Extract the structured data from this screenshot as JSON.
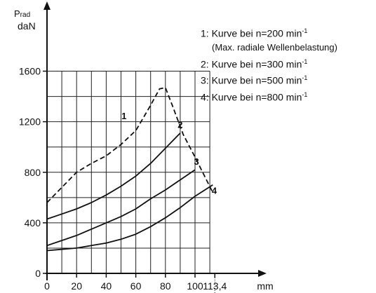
{
  "chart_data": {
    "type": "line",
    "ylabel_main": "P",
    "ylabel_sub": "rad",
    "yunit": "daN",
    "xunit": "mm",
    "xlim": [
      0,
      113.4
    ],
    "ylim": [
      0,
      1750
    ],
    "x_ticks": [
      {
        "v": 0,
        "label": "0"
      },
      {
        "v": 20,
        "label": "20"
      },
      {
        "v": 40,
        "label": "40"
      },
      {
        "v": 60,
        "label": "60"
      },
      {
        "v": 80,
        "label": "80"
      },
      {
        "v": 100,
        "label": "100"
      },
      {
        "v": 113.4,
        "label": "113,4"
      }
    ],
    "y_ticks": [
      {
        "v": 0,
        "label": "0"
      },
      {
        "v": 400,
        "label": "400"
      },
      {
        "v": 800,
        "label": "800"
      },
      {
        "v": 1200,
        "label": "1200"
      },
      {
        "v": 1600,
        "label": "1600"
      }
    ],
    "grid_x": [
      0,
      10,
      20,
      30,
      40,
      50,
      60,
      70,
      80,
      90,
      100,
      110
    ],
    "grid_y": [
      200,
      400,
      600,
      800,
      1000,
      1200,
      1400,
      1600
    ],
    "series": [
      {
        "name": "1",
        "x": [
          0,
          10,
          20,
          30,
          40,
          50,
          60,
          70,
          76,
          80,
          85,
          92,
          100,
          106,
          112
        ],
        "y": [
          560,
          680,
          800,
          870,
          930,
          1020,
          1130,
          1330,
          1460,
          1470,
          1320,
          1100,
          920,
          780,
          640
        ]
      },
      {
        "name": "2",
        "x": [
          0,
          10,
          20,
          30,
          40,
          50,
          60,
          70,
          80,
          90
        ],
        "y": [
          430,
          470,
          510,
          560,
          620,
          690,
          770,
          870,
          990,
          1110
        ]
      },
      {
        "name": "3",
        "x": [
          0,
          10,
          20,
          30,
          40,
          50,
          60,
          70,
          80,
          90,
          100
        ],
        "y": [
          220,
          260,
          300,
          350,
          400,
          450,
          510,
          590,
          660,
          740,
          820
        ]
      },
      {
        "name": "4",
        "x": [
          0,
          10,
          20,
          30,
          40,
          50,
          60,
          70,
          80,
          90,
          100,
          112
        ],
        "y": [
          180,
          190,
          200,
          220,
          240,
          270,
          310,
          370,
          440,
          520,
          610,
          700
        ]
      }
    ],
    "curve_labels": [
      {
        "text": "1",
        "x": 52,
        "y": 1220
      },
      {
        "text": "2",
        "x": 90,
        "y": 1150
      },
      {
        "text": "3",
        "x": 101,
        "y": 860
      },
      {
        "text": "4",
        "x": 113,
        "y": 630
      }
    ],
    "legend": [
      {
        "text": "1: Kurve bei n=200 min",
        "sup": "-1"
      },
      {
        "text": "(Max. radiale Wellenbelastung)",
        "sup": ""
      },
      {
        "text": "2: Kurve bei n=300 min",
        "sup": "-1"
      },
      {
        "text": "3: Kurve bei n=500 min",
        "sup": "-1"
      },
      {
        "text": "4: Kurve bei n=800 min",
        "sup": "-1"
      }
    ]
  }
}
